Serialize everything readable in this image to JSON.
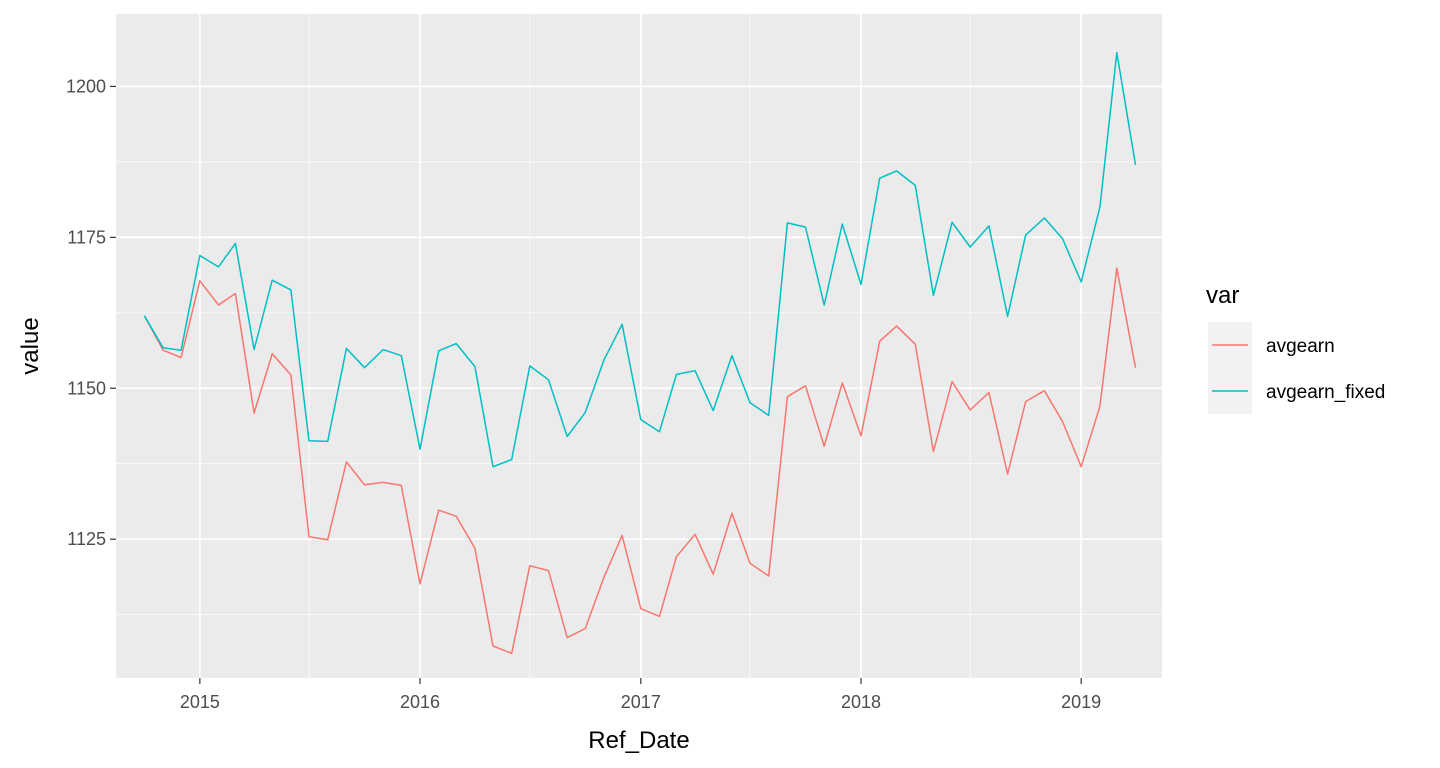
{
  "chart_data": {
    "type": "line",
    "title": "",
    "xlabel": "Ref_Date",
    "ylabel": "value",
    "x_axis": "date",
    "x_ticks": [
      "2015",
      "2016",
      "2017",
      "2018",
      "2019"
    ],
    "y_ticks": [
      1125,
      1150,
      1175,
      1200
    ],
    "xlim": [
      "2014-08-15",
      "2019-05-15"
    ],
    "ylim": [
      1102,
      1212
    ],
    "grid": true,
    "legend": {
      "title": "var",
      "placement": "right"
    },
    "x": [
      "2014-10",
      "2014-11",
      "2014-12",
      "2015-01",
      "2015-02",
      "2015-03",
      "2015-04",
      "2015-05",
      "2015-06",
      "2015-07",
      "2015-08",
      "2015-09",
      "2015-10",
      "2015-11",
      "2015-12",
      "2016-01",
      "2016-02",
      "2016-03",
      "2016-04",
      "2016-05",
      "2016-06",
      "2016-07",
      "2016-08",
      "2016-09",
      "2016-10",
      "2016-11",
      "2016-12",
      "2017-01",
      "2017-02",
      "2017-03",
      "2017-04",
      "2017-05",
      "2017-06",
      "2017-07",
      "2017-08",
      "2017-09",
      "2017-10",
      "2017-11",
      "2017-12",
      "2018-01",
      "2018-02",
      "2018-03",
      "2018-04",
      "2018-05",
      "2018-06",
      "2018-07",
      "2018-08",
      "2018-09",
      "2018-10",
      "2018-11",
      "2018-12",
      "2019-01",
      "2019-02",
      "2019-03",
      "2019-04"
    ],
    "series": [
      {
        "name": "avgearn",
        "color": "#F8766D",
        "values": [
          1162.0,
          1156.3,
          1155.1,
          1167.8,
          1163.8,
          1165.7,
          1145.9,
          1155.7,
          1152.2,
          1125.4,
          1124.9,
          1137.8,
          1134.0,
          1134.4,
          1133.9,
          1117.6,
          1129.8,
          1128.8,
          1123.5,
          1107.3,
          1106.1,
          1120.6,
          1119.8,
          1108.7,
          1110.2,
          1118.7,
          1125.6,
          1113.5,
          1112.2,
          1122.1,
          1125.8,
          1119.2,
          1129.3,
          1121.0,
          1118.9,
          1148.6,
          1150.4,
          1140.4,
          1150.9,
          1142.1,
          1157.8,
          1160.3,
          1157.3,
          1139.5,
          1151.1,
          1146.4,
          1149.3,
          1135.8,
          1147.8,
          1149.6,
          1144.5,
          1137.0,
          1147.0,
          1169.9,
          1153.4
        ]
      },
      {
        "name": "avgearn_fixed",
        "color": "#00BFC4",
        "values": [
          1162.0,
          1156.7,
          1156.3,
          1172.0,
          1170.1,
          1174.0,
          1156.4,
          1167.9,
          1166.3,
          1141.3,
          1141.2,
          1156.6,
          1153.4,
          1156.4,
          1155.4,
          1139.9,
          1156.2,
          1157.4,
          1153.6,
          1137.0,
          1138.2,
          1153.7,
          1151.4,
          1142.0,
          1146.0,
          1154.7,
          1160.6,
          1144.8,
          1142.8,
          1152.3,
          1152.9,
          1146.3,
          1155.4,
          1147.6,
          1145.5,
          1177.4,
          1176.7,
          1163.8,
          1177.2,
          1167.2,
          1184.8,
          1186.0,
          1183.6,
          1165.4,
          1177.5,
          1173.4,
          1176.9,
          1161.9,
          1175.4,
          1178.2,
          1174.8,
          1167.6,
          1180.0,
          1205.6,
          1187.0
        ]
      }
    ]
  }
}
